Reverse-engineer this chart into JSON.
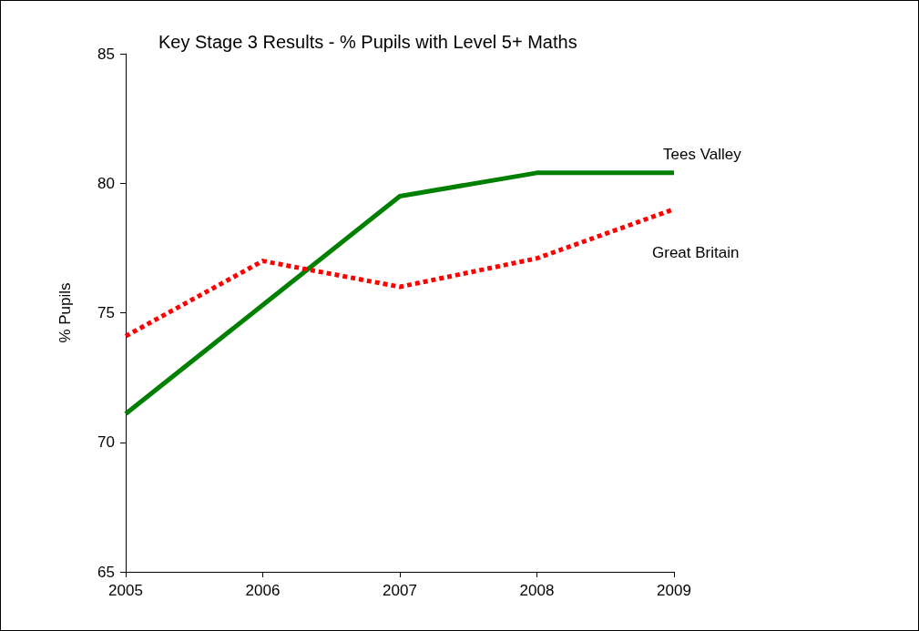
{
  "chart_data": {
    "type": "line",
    "title": "Key Stage 3 Results - % Pupils with Level 5+ Maths",
    "ylabel": "% Pupils",
    "x": [
      2005,
      2006,
      2007,
      2008,
      2009
    ],
    "xlim": [
      2005,
      2009
    ],
    "xticks": [
      2005,
      2006,
      2007,
      2008,
      2009
    ],
    "ylim": [
      65,
      85
    ],
    "yticks": [
      65,
      70,
      75,
      80,
      85
    ],
    "grid": false,
    "legend": false,
    "marker": "none",
    "series": [
      {
        "name": "Tees Valley",
        "color": "#008000",
        "line_style": "solid",
        "values": [
          71.1,
          75.3,
          79.5,
          80.4,
          80.4
        ]
      },
      {
        "name": "Great Britain",
        "color": "#ff0000",
        "line_style": "dashed",
        "values": [
          74.1,
          77.0,
          76.0,
          77.1,
          79.0
        ]
      }
    ]
  }
}
